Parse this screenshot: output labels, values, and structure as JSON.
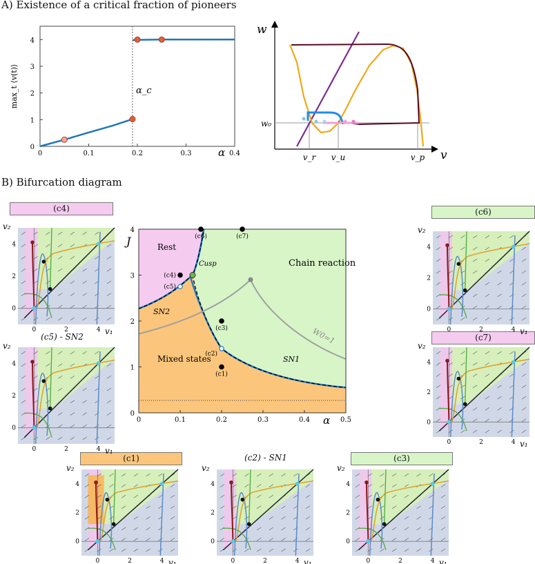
{
  "panel_a": {
    "heading": "A) Existence of a critical fraction of pioneers",
    "left_plot": {
      "ylabel": "max_t ⟨v(t)⟩",
      "xlabel": "α",
      "xticks": [
        "0",
        "0.1",
        "0.2",
        "0.3",
        "0.4"
      ],
      "yticks": [
        "0",
        "1",
        "2",
        "3",
        "4"
      ],
      "critical_label": "α_c",
      "chart_data": {
        "type": "line",
        "xlim": [
          0,
          0.4
        ],
        "ylim": [
          0,
          4.5
        ],
        "critical_alpha": 0.19,
        "series": [
          {
            "x": [
              0,
              0.05,
              0.1,
              0.15,
              0.19
            ],
            "y": [
              0,
              0.25,
              0.52,
              0.78,
              1.02
            ]
          },
          {
            "x": [
              0.19,
              0.2,
              0.25,
              0.3,
              0.35,
              0.4
            ],
            "y": [
              3.98,
              3.99,
              4.0,
              4.0,
              4.0,
              4.0
            ]
          }
        ],
        "markers": [
          {
            "x": 0.05,
            "y": 0.25,
            "color": "#f4a9a0"
          },
          {
            "x": 0.19,
            "y": 1.02,
            "color": "#e0603a"
          },
          {
            "x": 0.2,
            "y": 4.0,
            "color": "#e0603a"
          },
          {
            "x": 0.25,
            "y": 4.0,
            "color": "#e0603a"
          }
        ]
      }
    },
    "right_plot": {
      "ylabel": "w",
      "xlabel": "v",
      "w0_label": "w₀",
      "tick_labels": [
        "v_r",
        "v_u",
        "v_p"
      ]
    }
  },
  "panel_b": {
    "heading": "B) Bifurcation diagram",
    "main": {
      "ylabel": "J",
      "xlabel": "α",
      "xticks": [
        "0",
        "0.1",
        "0.2",
        "0.3",
        "0.4",
        "0.5"
      ],
      "yticks": [
        "0",
        "1",
        "2",
        "3",
        "4"
      ],
      "region_labels": {
        "rest": "Rest",
        "chain": "Chain reaction",
        "mixed": "Mixed states"
      },
      "curve_labels": {
        "sn1": "SN1",
        "sn2": "SN2",
        "cusp": "Cusp",
        "w0": "W0=1"
      },
      "points": [
        {
          "label": "(c1)",
          "alpha": 0.2,
          "J": 1.0
        },
        {
          "label": "(c2)",
          "alpha": 0.2,
          "J": 1.4
        },
        {
          "label": "(c3)",
          "alpha": 0.2,
          "J": 2.0
        },
        {
          "label": "(c4)",
          "alpha": 0.1,
          "J": 3.0
        },
        {
          "label": "(c5)",
          "alpha": 0.1,
          "J": 2.75
        },
        {
          "label": "(c6)",
          "alpha": 0.15,
          "J": 4.0
        },
        {
          "label": "(c7)",
          "alpha": 0.25,
          "J": 4.0
        }
      ],
      "colors": {
        "rest": "#f5ccf0",
        "chain": "#d8f5c8",
        "mixed": "#fbc67c",
        "boundary": "#1e78c8"
      }
    },
    "insets": {
      "c4": {
        "title": "(c4)"
      },
      "c5": {
        "title": "(c5) - SN2"
      },
      "c6": {
        "title": "(c6)"
      },
      "c7": {
        "title": "(c7)"
      },
      "c1": {
        "title": "(c1)"
      },
      "c2": {
        "title": "(c2) - SN1"
      },
      "c3": {
        "title": "(c3)"
      },
      "axis_labels": {
        "x": "v₁",
        "y": "v₂"
      },
      "ticks": [
        "0",
        "2",
        "4"
      ]
    }
  }
}
